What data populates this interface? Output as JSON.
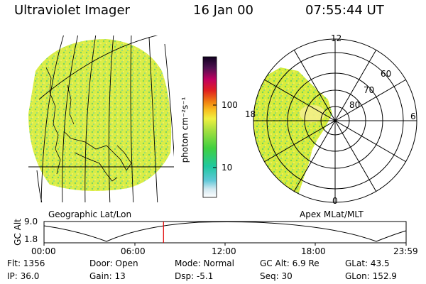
{
  "header": {
    "instrument": "Ultraviolet Imager",
    "date": "16 Jan 00",
    "time": "07:55:44 UT"
  },
  "colorbar": {
    "unit_label": "photon cm⁻²s⁻¹",
    "ticks": [
      "100",
      "10"
    ]
  },
  "geo_panel": {
    "label": "Geographic Lat/Lon"
  },
  "polar_panel": {
    "label": "Apex MLat/MLT",
    "mlt_labels": {
      "top": "12",
      "left": "18",
      "right": "6",
      "bottom": "0"
    },
    "lat_labels": [
      "60",
      "70",
      "80"
    ]
  },
  "timeline": {
    "ylabel": "GC Alt",
    "ymax_label": "9.0",
    "ymin_label": "1.8",
    "time_ticks": [
      "00:00",
      "06:00",
      "12:00",
      "18:00",
      "23:59"
    ],
    "current_time_fraction": 0.33
  },
  "info": {
    "flt": "Flt: 1356",
    "ip": "IP: 36.0",
    "door": "Door: Open",
    "gain": "Gain: 13",
    "mode": "Mode: Normal",
    "dsp": "Dsp:  -5.1",
    "gc_alt": "GC Alt: 6.9 Re",
    "seq": "Seq: 30",
    "glat": "GLat: 43.5",
    "glon": "GLon: 152.9"
  },
  "colors": {
    "aurora_main": "#d8ec3c",
    "aurora_green": "#6fd35a",
    "aurora_yellow": "#f2ef6a",
    "marker": "#e00000"
  }
}
